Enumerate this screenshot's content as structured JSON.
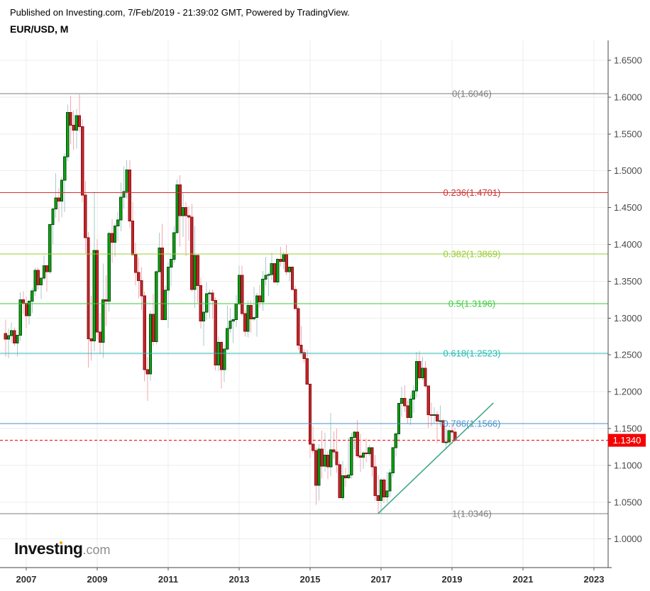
{
  "header": {
    "published_line": "Published on Investing.com, 7/Feb/2019 - 21:39:02 GMT, Powered by TradingView.",
    "symbol_line": "EUR/USD, M"
  },
  "logo": {
    "text": "Investing.com",
    "part1": "Invest",
    "part2": "ı",
    "part3": "ng",
    "suffix": ".com",
    "dot_color": "#f7a600"
  },
  "chart_data": {
    "type": "candlestick",
    "symbol": "EUR/USD",
    "timeframe": "M",
    "grid": true,
    "y_axis_range": [
      0.961,
      1.677
    ],
    "y_ticks": [
      {
        "label": "1.6500",
        "value": 1.65
      },
      {
        "label": "1.6000",
        "value": 1.6
      },
      {
        "label": "1.5500",
        "value": 1.55
      },
      {
        "label": "1.5000",
        "value": 1.5
      },
      {
        "label": "1.4500",
        "value": 1.45
      },
      {
        "label": "1.4000",
        "value": 1.4
      },
      {
        "label": "1.3500",
        "value": 1.35
      },
      {
        "label": "1.3000",
        "value": 1.3
      },
      {
        "label": "1.2500",
        "value": 1.25
      },
      {
        "label": "1.2000",
        "value": 1.2
      },
      {
        "label": "1.1500",
        "value": 1.15
      },
      {
        "label": "1.1000",
        "value": 1.1
      },
      {
        "label": "1.0500",
        "value": 1.05
      },
      {
        "label": "1.0000",
        "value": 1.0
      }
    ],
    "x_ticks": [
      {
        "label": "2007",
        "month": "2007-01"
      },
      {
        "label": "2009",
        "month": "2009-01"
      },
      {
        "label": "2011",
        "month": "2011-01"
      },
      {
        "label": "2013",
        "month": "2013-01"
      },
      {
        "label": "2015",
        "month": "2015-01"
      },
      {
        "label": "2017",
        "month": "2017-01"
      },
      {
        "label": "2019",
        "month": "2019-01"
      },
      {
        "label": "2021",
        "month": "2021-01"
      },
      {
        "label": "2023",
        "month": "2023-01"
      }
    ],
    "fib_levels": [
      {
        "label": "0(1.6046)",
        "price": 1.6046,
        "color": "#7d7d7d"
      },
      {
        "label": "0.236(1.4701)",
        "price": 1.4701,
        "color": "#cf3434"
      },
      {
        "label": "0.382(1.3869)",
        "price": 1.3869,
        "color": "#9acd32"
      },
      {
        "label": "0.5(1.3196)",
        "price": 1.3196,
        "color": "#3ecb3e"
      },
      {
        "label": "0.618(1.2523)",
        "price": 1.2523,
        "color": "#27bdb0"
      },
      {
        "label": "0.786(1.1566)",
        "price": 1.1566,
        "color": "#4a90c9"
      },
      {
        "label": "1(1.0346)",
        "price": 1.0346,
        "color": "#7d7d7d"
      }
    ],
    "trend_line": {
      "from": {
        "month": "2016-12",
        "price": 1.0346
      },
      "to": {
        "month": "2020-03",
        "price": 1.1847
      },
      "color": "#42a786"
    },
    "last_price": {
      "value": "1.1340",
      "price": 1.134,
      "color": "#f50000"
    },
    "style": {
      "up": "#0da514",
      "up_border": "#074d0a",
      "down": "#c5262a",
      "down_border": "#8a1216",
      "wick_up": "#aac9cf",
      "wick_down": "#f4a7af",
      "grid_color": "#ededed",
      "axis_color": "#444444",
      "tick_label_color": "#4a4a4a",
      "year_label_color": "#2e2e2e"
    },
    "candles_format": [
      "month",
      "open",
      "high",
      "low",
      "close"
    ],
    "candles": [
      [
        "2006-06",
        1.279,
        1.298,
        1.248,
        1.2713
      ],
      [
        "2006-07",
        1.2713,
        1.286,
        1.2455,
        1.276
      ],
      [
        "2006-08",
        1.276,
        1.294,
        1.266,
        1.283
      ],
      [
        "2006-09",
        1.283,
        1.2873,
        1.262,
        1.266
      ],
      [
        "2006-10",
        1.266,
        1.276,
        1.248,
        1.2765
      ],
      [
        "2006-11",
        1.2765,
        1.335,
        1.269,
        1.325
      ],
      [
        "2006-12",
        1.325,
        1.3365,
        1.305,
        1.32
      ],
      [
        "2007-01",
        1.32,
        1.329,
        1.2865,
        1.303
      ],
      [
        "2007-02",
        1.303,
        1.3255,
        1.291,
        1.323
      ],
      [
        "2007-03",
        1.323,
        1.341,
        1.307,
        1.337
      ],
      [
        "2007-04",
        1.337,
        1.368,
        1.33,
        1.365
      ],
      [
        "2007-05",
        1.365,
        1.3685,
        1.339,
        1.345
      ],
      [
        "2007-06",
        1.345,
        1.354,
        1.326,
        1.354
      ],
      [
        "2007-07",
        1.354,
        1.385,
        1.351,
        1.371
      ],
      [
        "2007-08",
        1.371,
        1.372,
        1.336,
        1.363
      ],
      [
        "2007-09",
        1.363,
        1.428,
        1.36,
        1.427
      ],
      [
        "2007-10",
        1.427,
        1.45,
        1.4,
        1.448
      ],
      [
        "2007-11",
        1.448,
        1.4966,
        1.436,
        1.463
      ],
      [
        "2007-12",
        1.463,
        1.476,
        1.431,
        1.459
      ],
      [
        "2008-01",
        1.459,
        1.492,
        1.4365,
        1.487
      ],
      [
        "2008-02",
        1.487,
        1.524,
        1.444,
        1.519
      ],
      [
        "2008-03",
        1.519,
        1.59,
        1.513,
        1.579
      ],
      [
        "2008-04",
        1.579,
        1.6018,
        1.536,
        1.562
      ],
      [
        "2008-05",
        1.562,
        1.5815,
        1.528,
        1.555
      ],
      [
        "2008-06",
        1.555,
        1.584,
        1.53,
        1.575
      ],
      [
        "2008-07",
        1.575,
        1.6038,
        1.552,
        1.56
      ],
      [
        "2008-08",
        1.56,
        1.57,
        1.457,
        1.467
      ],
      [
        "2008-09",
        1.467,
        1.486,
        1.388,
        1.409
      ],
      [
        "2008-10",
        1.409,
        1.417,
        1.233,
        1.272
      ],
      [
        "2008-11",
        1.272,
        1.33,
        1.242,
        1.269
      ],
      [
        "2008-12",
        1.269,
        1.472,
        1.255,
        1.392
      ],
      [
        "2009-01",
        1.392,
        1.407,
        1.271,
        1.281
      ],
      [
        "2009-02",
        1.281,
        1.307,
        1.251,
        1.267
      ],
      [
        "2009-03",
        1.267,
        1.374,
        1.246,
        1.325
      ],
      [
        "2009-04",
        1.325,
        1.358,
        1.289,
        1.323
      ],
      [
        "2009-05",
        1.323,
        1.417,
        1.309,
        1.415
      ],
      [
        "2009-06",
        1.415,
        1.434,
        1.375,
        1.403
      ],
      [
        "2009-07",
        1.403,
        1.429,
        1.383,
        1.425
      ],
      [
        "2009-08",
        1.425,
        1.4445,
        1.405,
        1.433
      ],
      [
        "2009-09",
        1.433,
        1.484,
        1.418,
        1.464
      ],
      [
        "2009-10",
        1.464,
        1.506,
        1.448,
        1.472
      ],
      [
        "2009-11",
        1.472,
        1.5145,
        1.462,
        1.501
      ],
      [
        "2009-12",
        1.501,
        1.514,
        1.422,
        1.432
      ],
      [
        "2010-01",
        1.432,
        1.458,
        1.386,
        1.386
      ],
      [
        "2010-02",
        1.386,
        1.4025,
        1.344,
        1.362
      ],
      [
        "2010-03",
        1.362,
        1.382,
        1.327,
        1.351
      ],
      [
        "2010-04",
        1.351,
        1.369,
        1.311,
        1.33
      ],
      [
        "2010-05",
        1.33,
        1.336,
        1.214,
        1.23
      ],
      [
        "2010-06",
        1.23,
        1.247,
        1.1876,
        1.224
      ],
      [
        "2010-07",
        1.224,
        1.31,
        1.215,
        1.305
      ],
      [
        "2010-08",
        1.305,
        1.333,
        1.262,
        1.268
      ],
      [
        "2010-09",
        1.268,
        1.365,
        1.264,
        1.363
      ],
      [
        "2010-10",
        1.363,
        1.416,
        1.363,
        1.395
      ],
      [
        "2010-11",
        1.395,
        1.428,
        1.297,
        1.298
      ],
      [
        "2010-12",
        1.298,
        1.344,
        1.297,
        1.338
      ],
      [
        "2011-01",
        1.338,
        1.376,
        1.287,
        1.369
      ],
      [
        "2011-02",
        1.369,
        1.386,
        1.343,
        1.38
      ],
      [
        "2011-03",
        1.38,
        1.425,
        1.375,
        1.416
      ],
      [
        "2011-04",
        1.416,
        1.488,
        1.415,
        1.481
      ],
      [
        "2011-05",
        1.481,
        1.494,
        1.397,
        1.439
      ],
      [
        "2011-06",
        1.439,
        1.47,
        1.41,
        1.45
      ],
      [
        "2011-07",
        1.45,
        1.458,
        1.384,
        1.439
      ],
      [
        "2011-08",
        1.439,
        1.452,
        1.405,
        1.437
      ],
      [
        "2011-09",
        1.437,
        1.455,
        1.336,
        1.339
      ],
      [
        "2011-10",
        1.339,
        1.425,
        1.314,
        1.385
      ],
      [
        "2011-11",
        1.385,
        1.386,
        1.321,
        1.344
      ],
      [
        "2011-12",
        1.344,
        1.355,
        1.286,
        1.296
      ],
      [
        "2012-01",
        1.296,
        1.323,
        1.262,
        1.308
      ],
      [
        "2012-02",
        1.308,
        1.349,
        1.297,
        1.333
      ],
      [
        "2012-03",
        1.333,
        1.339,
        1.3,
        1.334
      ],
      [
        "2012-04",
        1.334,
        1.339,
        1.299,
        1.324
      ],
      [
        "2012-05",
        1.324,
        1.328,
        1.229,
        1.236
      ],
      [
        "2012-06",
        1.236,
        1.275,
        1.228,
        1.267
      ],
      [
        "2012-07",
        1.267,
        1.269,
        1.2042,
        1.23
      ],
      [
        "2012-08",
        1.23,
        1.264,
        1.213,
        1.258
      ],
      [
        "2012-09",
        1.258,
        1.317,
        1.256,
        1.286
      ],
      [
        "2012-10",
        1.286,
        1.314,
        1.28,
        1.296
      ],
      [
        "2012-11",
        1.296,
        1.301,
        1.266,
        1.298
      ],
      [
        "2012-12",
        1.298,
        1.331,
        1.288,
        1.319
      ],
      [
        "2013-01",
        1.319,
        1.371,
        1.318,
        1.358
      ],
      [
        "2013-02",
        1.358,
        1.371,
        1.302,
        1.306
      ],
      [
        "2013-03",
        1.306,
        1.311,
        1.275,
        1.282
      ],
      [
        "2013-04",
        1.282,
        1.324,
        1.274,
        1.317
      ],
      [
        "2013-05",
        1.317,
        1.324,
        1.28,
        1.299
      ],
      [
        "2013-06",
        1.299,
        1.342,
        1.296,
        1.301
      ],
      [
        "2013-07",
        1.301,
        1.334,
        1.275,
        1.33
      ],
      [
        "2013-08",
        1.33,
        1.345,
        1.314,
        1.322
      ],
      [
        "2013-09",
        1.322,
        1.364,
        1.31,
        1.353
      ],
      [
        "2013-10",
        1.353,
        1.383,
        1.344,
        1.358
      ],
      [
        "2013-11",
        1.358,
        1.362,
        1.33,
        1.359
      ],
      [
        "2013-12",
        1.359,
        1.389,
        1.352,
        1.374
      ],
      [
        "2014-01",
        1.374,
        1.374,
        1.348,
        1.349
      ],
      [
        "2014-02",
        1.349,
        1.382,
        1.344,
        1.38
      ],
      [
        "2014-03",
        1.38,
        1.3967,
        1.37,
        1.377
      ],
      [
        "2014-04",
        1.377,
        1.39,
        1.367,
        1.387
      ],
      [
        "2014-05",
        1.387,
        1.3993,
        1.358,
        1.363
      ],
      [
        "2014-06",
        1.363,
        1.37,
        1.35,
        1.369
      ],
      [
        "2014-07",
        1.369,
        1.37,
        1.337,
        1.339
      ],
      [
        "2014-08",
        1.339,
        1.344,
        1.313,
        1.313
      ],
      [
        "2014-09",
        1.313,
        1.316,
        1.257,
        1.263
      ],
      [
        "2014-10",
        1.263,
        1.289,
        1.25,
        1.253
      ],
      [
        "2014-11",
        1.253,
        1.258,
        1.239,
        1.245
      ],
      [
        "2014-12",
        1.245,
        1.257,
        1.21,
        1.21
      ],
      [
        "2015-01",
        1.21,
        1.211,
        1.11,
        1.129
      ],
      [
        "2015-02",
        1.129,
        1.153,
        1.116,
        1.12
      ],
      [
        "2015-03",
        1.12,
        1.124,
        1.0462,
        1.073
      ],
      [
        "2015-04",
        1.073,
        1.129,
        1.052,
        1.122
      ],
      [
        "2015-05",
        1.122,
        1.147,
        1.082,
        1.099
      ],
      [
        "2015-06",
        1.099,
        1.144,
        1.091,
        1.114
      ],
      [
        "2015-07",
        1.114,
        1.119,
        1.081,
        1.098
      ],
      [
        "2015-08",
        1.098,
        1.171,
        1.085,
        1.121
      ],
      [
        "2015-09",
        1.121,
        1.146,
        1.109,
        1.118
      ],
      [
        "2015-10",
        1.118,
        1.15,
        1.09,
        1.101
      ],
      [
        "2015-11",
        1.101,
        1.106,
        1.056,
        1.056
      ],
      [
        "2015-12",
        1.056,
        1.106,
        1.052,
        1.086
      ],
      [
        "2016-01",
        1.086,
        1.097,
        1.071,
        1.083
      ],
      [
        "2016-02",
        1.083,
        1.138,
        1.081,
        1.087
      ],
      [
        "2016-03",
        1.087,
        1.144,
        1.082,
        1.138
      ],
      [
        "2016-04",
        1.138,
        1.1465,
        1.122,
        1.145
      ],
      [
        "2016-05",
        1.145,
        1.1615,
        1.11,
        1.113
      ],
      [
        "2016-06",
        1.113,
        1.143,
        1.091,
        1.111
      ],
      [
        "2016-07",
        1.111,
        1.119,
        1.095,
        1.117
      ],
      [
        "2016-08",
        1.117,
        1.1365,
        1.104,
        1.116
      ],
      [
        "2016-09",
        1.116,
        1.128,
        1.112,
        1.124
      ],
      [
        "2016-10",
        1.124,
        1.125,
        1.085,
        1.098
      ],
      [
        "2016-11",
        1.098,
        1.114,
        1.052,
        1.059
      ],
      [
        "2016-12",
        1.059,
        1.087,
        1.035,
        1.052
      ],
      [
        "2017-01",
        1.052,
        1.083,
        1.034,
        1.08
      ],
      [
        "2017-02",
        1.08,
        1.083,
        1.049,
        1.057
      ],
      [
        "2017-03",
        1.057,
        1.091,
        1.049,
        1.065
      ],
      [
        "2017-04",
        1.065,
        1.095,
        1.057,
        1.09
      ],
      [
        "2017-05",
        1.09,
        1.125,
        1.084,
        1.124
      ],
      [
        "2017-06",
        1.124,
        1.145,
        1.112,
        1.143
      ],
      [
        "2017-07",
        1.143,
        1.1845,
        1.131,
        1.184
      ],
      [
        "2017-08",
        1.184,
        1.207,
        1.166,
        1.191
      ],
      [
        "2017-09",
        1.191,
        1.209,
        1.172,
        1.181
      ],
      [
        "2017-10",
        1.181,
        1.188,
        1.157,
        1.165
      ],
      [
        "2017-11",
        1.165,
        1.196,
        1.155,
        1.19
      ],
      [
        "2017-12",
        1.19,
        1.209,
        1.171,
        1.201
      ],
      [
        "2018-01",
        1.201,
        1.254,
        1.192,
        1.241
      ],
      [
        "2018-02",
        1.241,
        1.2556,
        1.216,
        1.219
      ],
      [
        "2018-03",
        1.219,
        1.2476,
        1.2155,
        1.232
      ],
      [
        "2018-04",
        1.232,
        1.2415,
        1.2055,
        1.208
      ],
      [
        "2018-05",
        1.208,
        1.2085,
        1.151,
        1.169
      ],
      [
        "2018-06",
        1.169,
        1.185,
        1.153,
        1.168
      ],
      [
        "2018-07",
        1.168,
        1.179,
        1.157,
        1.169
      ],
      [
        "2018-08",
        1.169,
        1.1735,
        1.13,
        1.16
      ],
      [
        "2018-09",
        1.16,
        1.1815,
        1.1525,
        1.1605
      ],
      [
        "2018-10",
        1.1605,
        1.1625,
        1.13,
        1.131
      ],
      [
        "2018-11",
        1.131,
        1.15,
        1.1215,
        1.1315
      ],
      [
        "2018-12",
        1.1315,
        1.1485,
        1.1265,
        1.147
      ],
      [
        "2019-01",
        1.147,
        1.157,
        1.129,
        1.145
      ],
      [
        "2019-02",
        1.145,
        1.1515,
        1.132,
        1.134
      ]
    ]
  }
}
